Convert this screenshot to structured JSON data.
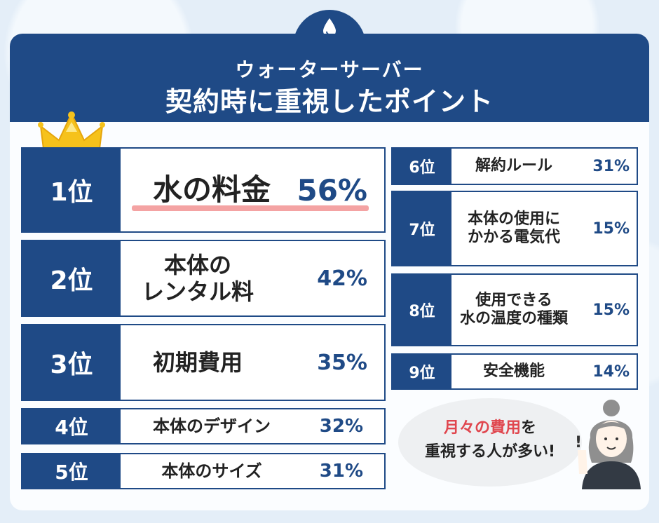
{
  "title": {
    "line1": "ウォーターサーバー",
    "line2": "契約時に重視したポイント"
  },
  "chart_data": {
    "type": "table",
    "ranks": [
      {
        "rank": "1位",
        "label_lines": [
          "水の料金"
        ],
        "percent": 56,
        "percent_label": "56%"
      },
      {
        "rank": "2位",
        "label_lines": [
          "本体の",
          "レンタル料"
        ],
        "percent": 42,
        "percent_label": "42%"
      },
      {
        "rank": "3位",
        "label_lines": [
          "初期費用"
        ],
        "percent": 35,
        "percent_label": "35%"
      },
      {
        "rank": "4位",
        "label_lines": [
          "本体のデザイン"
        ],
        "percent": 32,
        "percent_label": "32%"
      },
      {
        "rank": "5位",
        "label_lines": [
          "本体のサイズ"
        ],
        "percent": 31,
        "percent_label": "31%"
      },
      {
        "rank": "6位",
        "label_lines": [
          "解約ルール"
        ],
        "percent": 31,
        "percent_label": "31%"
      },
      {
        "rank": "7位",
        "label_lines": [
          "本体の使用に",
          "かかる電気代"
        ],
        "percent": 15,
        "percent_label": "15%"
      },
      {
        "rank": "8位",
        "label_lines": [
          "使用できる",
          "水の温度の種類"
        ],
        "percent": 15,
        "percent_label": "15%"
      },
      {
        "rank": "9位",
        "label_lines": [
          "安全機能"
        ],
        "percent": 14,
        "percent_label": "14%"
      }
    ]
  },
  "callout": {
    "highlight": "月々の費用",
    "line1_rest": "を",
    "line2": "重視する人が多い!"
  },
  "icons": {
    "header": "water-drop-icon",
    "top_rank": "crown-icon",
    "character": "woman-character-icon"
  },
  "colors": {
    "navy": "#1f4a86",
    "underline": "#f4a3a3",
    "highlight": "#e0464e",
    "crown": "#f6c21b"
  }
}
